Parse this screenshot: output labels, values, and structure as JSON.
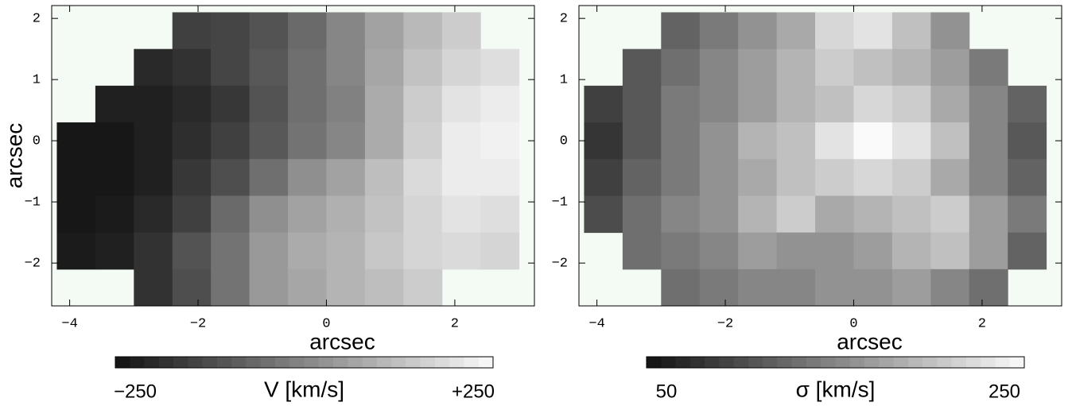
{
  "chart_data": [
    {
      "type": "heatmap",
      "xlabel": "arcsec",
      "ylabel": "arcsec",
      "x": [
        -3.9,
        -3.3,
        -2.7,
        -2.1,
        -1.5,
        -0.9,
        -0.3,
        0.3,
        0.9,
        1.5,
        2.1,
        2.7
      ],
      "y": [
        1.8,
        1.2,
        0.6,
        0.0,
        -0.6,
        -1.2,
        -1.8,
        -2.4
      ],
      "values": [
        [
          null,
          null,
          null,
          -150,
          -140,
          -110,
          -60,
          0,
          60,
          110,
          150,
          null
        ],
        [
          null,
          null,
          -200,
          -180,
          -140,
          -100,
          -50,
          0,
          70,
          130,
          170,
          190
        ],
        [
          null,
          -220,
          -220,
          -200,
          -170,
          -110,
          -50,
          -10,
          80,
          150,
          200,
          220
        ],
        [
          -240,
          -240,
          -220,
          -190,
          -150,
          -100,
          -40,
          0,
          80,
          160,
          220,
          230
        ],
        [
          -240,
          -240,
          -220,
          -170,
          -120,
          -50,
          20,
          60,
          120,
          180,
          220,
          220
        ],
        [
          -240,
          -230,
          -200,
          -150,
          -60,
          20,
          60,
          90,
          130,
          170,
          200,
          190
        ],
        [
          -230,
          -220,
          -180,
          -110,
          -40,
          40,
          80,
          100,
          140,
          170,
          180,
          170
        ],
        [
          null,
          null,
          -180,
          -120,
          -40,
          40,
          70,
          100,
          120,
          150,
          null,
          null
        ]
      ],
      "xlim": [
        -4.28,
        3.24
      ],
      "ylim": [
        -2.7,
        2.21
      ],
      "xticks": [
        {
          "value": -4,
          "label": "−4"
        },
        {
          "value": -2,
          "label": "−2"
        },
        0,
        2
      ],
      "yticks": [
        2,
        1,
        0,
        {
          "value": -1,
          "label": "−1"
        },
        {
          "value": -2,
          "label": "−2"
        }
      ],
      "colorbar": {
        "label": "V [km/s]",
        "lim": [
          -250,
          250
        ],
        "ticks": [
          {
            "value": -250,
            "label": "−250"
          },
          {
            "value": 250,
            "label": "+250"
          }
        ]
      }
    },
    {
      "type": "heatmap",
      "xlabel": "arcsec",
      "x": [
        -3.9,
        -3.3,
        -2.7,
        -2.1,
        -1.5,
        -0.9,
        -0.3,
        0.3,
        0.9,
        1.5,
        2.1,
        2.7
      ],
      "y": [
        1.8,
        1.2,
        0.6,
        0.0,
        -0.6,
        -1.2,
        -1.8,
        -2.4
      ],
      "values": [
        [
          null,
          null,
          120,
          140,
          160,
          180,
          220,
          230,
          200,
          160,
          null,
          null
        ],
        [
          null,
          110,
          130,
          150,
          170,
          190,
          210,
          200,
          190,
          170,
          140,
          null
        ],
        [
          90,
          110,
          140,
          150,
          170,
          190,
          200,
          220,
          210,
          180,
          150,
          120
        ],
        [
          80,
          110,
          140,
          160,
          190,
          200,
          230,
          250,
          230,
          200,
          150,
          110
        ],
        [
          90,
          120,
          140,
          160,
          180,
          200,
          210,
          220,
          210,
          180,
          150,
          120
        ],
        [
          100,
          130,
          150,
          160,
          190,
          210,
          180,
          190,
          200,
          210,
          170,
          140
        ],
        [
          null,
          130,
          140,
          150,
          170,
          160,
          160,
          170,
          190,
          200,
          170,
          120
        ],
        [
          null,
          null,
          130,
          140,
          150,
          150,
          160,
          160,
          170,
          150,
          130,
          null
        ]
      ],
      "xlim": [
        -4.28,
        3.24
      ],
      "ylim": [
        -2.7,
        2.21
      ],
      "xticks": [
        {
          "value": -4,
          "label": "−4"
        },
        {
          "value": -2,
          "label": "−2"
        },
        0,
        2
      ],
      "yticks": [
        2,
        1,
        0,
        {
          "value": -1,
          "label": "−1"
        },
        {
          "value": -2,
          "label": "−2"
        }
      ],
      "colorbar": {
        "label": "σ [km/s]",
        "lim": [
          50,
          250
        ],
        "ticks": [
          50,
          250
        ]
      }
    }
  ]
}
